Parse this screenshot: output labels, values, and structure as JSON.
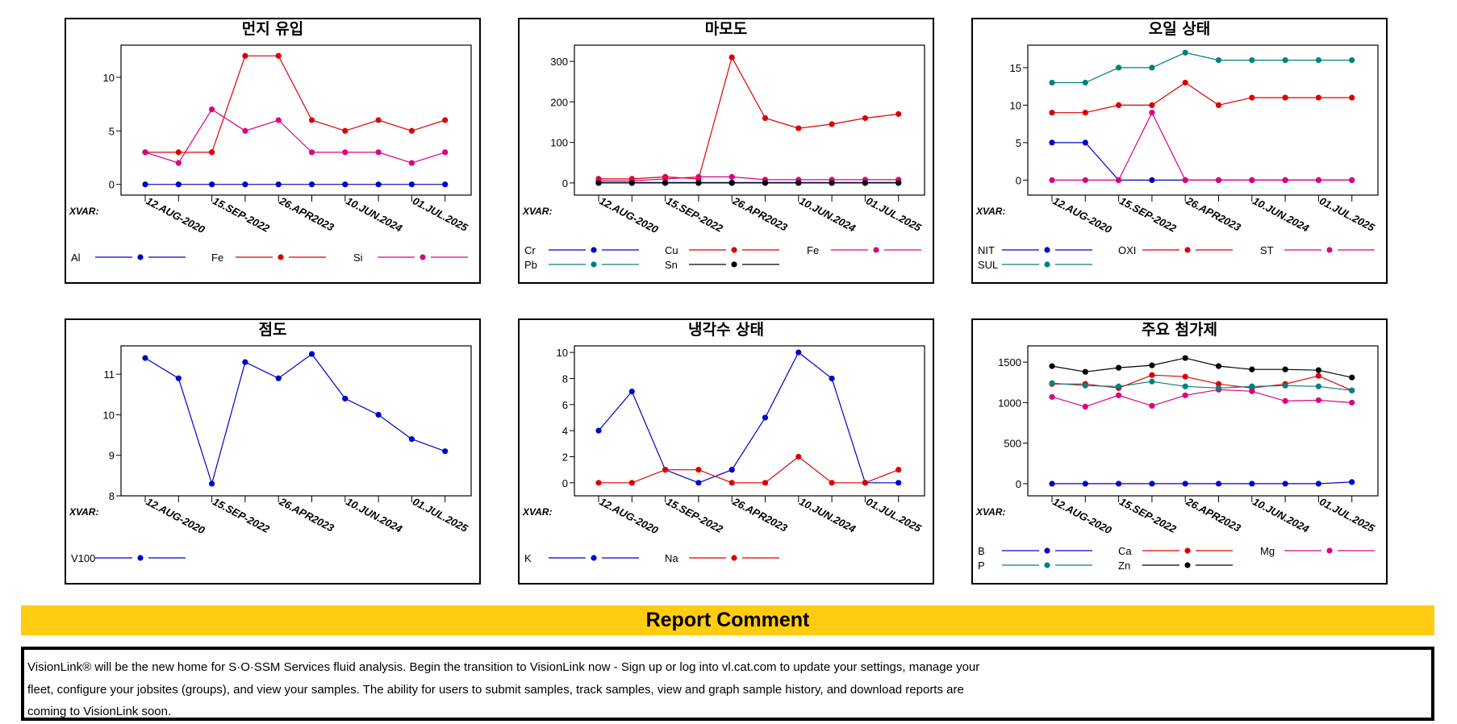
{
  "report_comment": {
    "title": "Report Comment",
    "text": "VisionLink® will be the new home for S·O·SSM Services fluid analysis. Begin the transition to VisionLink now - Sign up or log into vl.cat.com to update your settings, manage your\nfleet, configure your jobsites (groups), and view your samples. The ability for users to submit samples, track samples, view and graph sample history, and download reports are\ncoming to VisionLink soon."
  },
  "chart_data": [
    {
      "type": "line",
      "title": "먼지 유입",
      "xvar_label": "XVAR:",
      "x_tick_labels": [
        "12.AUG-2020",
        "15.SEP-2022",
        "26.APR2023",
        "10.JUN.2024",
        "01.JUL.2025"
      ],
      "ylim": [
        -1,
        13
      ],
      "yticks": [
        0,
        5,
        10
      ],
      "series": [
        {
          "name": "Al",
          "color": "#0000CC",
          "values": [
            0,
            0,
            0,
            0,
            0,
            0,
            0,
            0,
            0,
            0
          ]
        },
        {
          "name": "Fe",
          "color": "#DD0000",
          "values": [
            3,
            3,
            3,
            12,
            12,
            6,
            5,
            6,
            5,
            6
          ]
        },
        {
          "name": "Si",
          "color": "#DD0080",
          "values": [
            3,
            2,
            7,
            5,
            6,
            3,
            3,
            3,
            2,
            3
          ]
        }
      ]
    },
    {
      "type": "line",
      "title": "마모도",
      "xvar_label": "XVAR:",
      "x_tick_labels": [
        "12.AUG-2020",
        "15.SEP-2022",
        "26.APR2023",
        "10.JUN.2024",
        "01.JUL.2025"
      ],
      "ylim": [
        -30,
        340
      ],
      "yticks": [
        0,
        100,
        200,
        300
      ],
      "series": [
        {
          "name": "Cr",
          "color": "#0000CC",
          "values": [
            1,
            1,
            1,
            1,
            1,
            1,
            1,
            1,
            1,
            1
          ]
        },
        {
          "name": "Cu",
          "color": "#DD0000",
          "values": [
            10,
            10,
            15,
            10,
            310,
            160,
            135,
            145,
            160,
            170
          ]
        },
        {
          "name": "Fe",
          "color": "#DD0080",
          "values": [
            5,
            5,
            10,
            15,
            15,
            8,
            8,
            8,
            8,
            8
          ]
        },
        {
          "name": "Pb",
          "color": "#008080",
          "values": [
            0,
            0,
            0,
            0,
            0,
            0,
            0,
            0,
            0,
            0
          ]
        },
        {
          "name": "Sn",
          "color": "#000000",
          "values": [
            0,
            0,
            0,
            0,
            0,
            0,
            0,
            0,
            0,
            0
          ]
        }
      ]
    },
    {
      "type": "line",
      "title": "오일 상태",
      "xvar_label": "XVAR:",
      "x_tick_labels": [
        "12.AUG-2020",
        "15.SEP-2022",
        "26.APR2023",
        "10.JUN.2024",
        "01.JUL.2025"
      ],
      "ylim": [
        -2,
        18
      ],
      "yticks": [
        0,
        5,
        10,
        15
      ],
      "series": [
        {
          "name": "NIT",
          "color": "#0000CC",
          "values": [
            5,
            5,
            0,
            0,
            0,
            0,
            0,
            0,
            0,
            0
          ]
        },
        {
          "name": "OXI",
          "color": "#DD0000",
          "values": [
            9,
            9,
            10,
            10,
            13,
            10,
            11,
            11,
            11,
            11
          ]
        },
        {
          "name": "ST",
          "color": "#DD0080",
          "values": [
            0,
            0,
            0,
            9,
            0,
            0,
            0,
            0,
            0,
            0
          ]
        },
        {
          "name": "SUL",
          "color": "#008080",
          "values": [
            13,
            13,
            15,
            15,
            17,
            16,
            16,
            16,
            16,
            16
          ]
        }
      ]
    },
    {
      "type": "line",
      "title": "점도",
      "xvar_label": "XVAR:",
      "x_tick_labels": [
        "12.AUG-2020",
        "15.SEP-2022",
        "26.APR2023",
        "10.JUN.2024",
        "01.JUL.2025"
      ],
      "ylim": [
        8,
        11.7
      ],
      "yticks": [
        8,
        9,
        10,
        11
      ],
      "series": [
        {
          "name": "V100",
          "color": "#0000CC",
          "values": [
            11.4,
            10.9,
            8.3,
            11.3,
            10.9,
            11.5,
            10.4,
            10.0,
            9.4,
            9.1
          ]
        }
      ]
    },
    {
      "type": "line",
      "title": "냉각수 상태",
      "xvar_label": "XVAR:",
      "x_tick_labels": [
        "12.AUG-2020",
        "15.SEP-2022",
        "26.APR2023",
        "10.JUN.2024",
        "01.JUL.2025"
      ],
      "ylim": [
        -1,
        10.5
      ],
      "yticks": [
        0,
        2,
        4,
        6,
        8,
        10
      ],
      "series": [
        {
          "name": "K",
          "color": "#0000CC",
          "values": [
            4,
            7,
            1,
            0,
            1,
            5,
            10,
            8,
            0,
            0
          ]
        },
        {
          "name": "Na",
          "color": "#DD0000",
          "values": [
            0,
            0,
            1,
            1,
            0,
            0,
            2,
            0,
            0,
            1
          ]
        }
      ]
    },
    {
      "type": "line",
      "title": "주요 첨가제",
      "xvar_label": "XVAR:",
      "x_tick_labels": [
        "12.AUG-2020",
        "15.SEP-2022",
        "26.APR2023",
        "10.JUN.2024",
        "01.JUL.2025"
      ],
      "ylim": [
        -150,
        1700
      ],
      "yticks": [
        0,
        500,
        1000,
        1500
      ],
      "series": [
        {
          "name": "B",
          "color": "#0000CC",
          "values": [
            0,
            0,
            0,
            0,
            0,
            0,
            0,
            0,
            0,
            20
          ]
        },
        {
          "name": "Ca",
          "color": "#DD0000",
          "values": [
            1230,
            1230,
            1180,
            1340,
            1320,
            1230,
            1180,
            1230,
            1330,
            1150
          ]
        },
        {
          "name": "Mg",
          "color": "#DD0080",
          "values": [
            1070,
            950,
            1090,
            960,
            1090,
            1160,
            1140,
            1020,
            1030,
            1000
          ]
        },
        {
          "name": "P",
          "color": "#008080",
          "values": [
            1240,
            1210,
            1200,
            1260,
            1200,
            1180,
            1200,
            1210,
            1200,
            1150
          ]
        },
        {
          "name": "Zn",
          "color": "#000000",
          "values": [
            1450,
            1380,
            1430,
            1460,
            1550,
            1450,
            1410,
            1410,
            1400,
            1310
          ]
        }
      ]
    }
  ]
}
